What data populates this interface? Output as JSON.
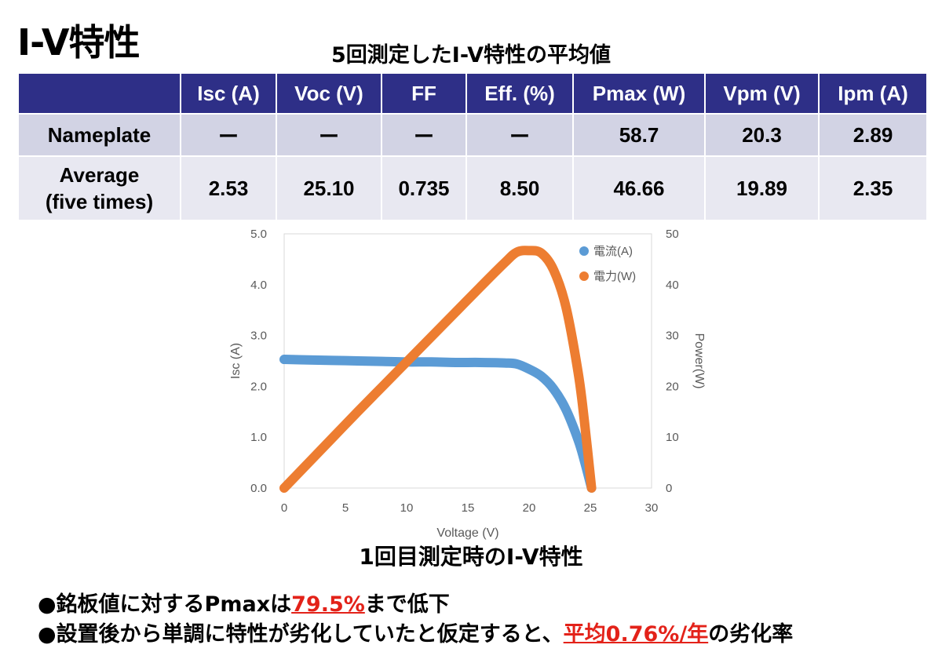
{
  "page": {
    "title": "I-V特性",
    "table_caption": "5回測定したI-V特性の平均値",
    "chart_caption": "1回目測定時のI-V特性"
  },
  "table": {
    "headers": [
      "",
      "Isc (A)",
      "Voc (V)",
      "FF",
      "Eff. (%)",
      "Pmax (W)",
      "Vpm (V)",
      "Ipm (A)"
    ],
    "rows": [
      {
        "label": "Nameplate",
        "cells": [
          "ー",
          "ー",
          "ー",
          "ー",
          "58.7",
          "20.3",
          "2.89"
        ]
      },
      {
        "label_line1": "Average",
        "label_line2": "(five times)",
        "cells": [
          "2.53",
          "25.10",
          "0.735",
          "8.50",
          "46.66",
          "19.89",
          "2.35"
        ]
      }
    ]
  },
  "chart_data": {
    "type": "scatter",
    "xlabel": "Voltage (V)",
    "ylabel": "Isc (A)",
    "y2label": "Power(W)",
    "xlim": [
      0,
      30
    ],
    "ylim": [
      0,
      5
    ],
    "y2lim": [
      0,
      50
    ],
    "x_ticks": [
      "0",
      "5",
      "10",
      "15",
      "20",
      "25",
      "30"
    ],
    "y_ticks": [
      "0.0",
      "1.0",
      "2.0",
      "3.0",
      "4.0",
      "5.0"
    ],
    "y2_ticks": [
      "0",
      "10",
      "20",
      "30",
      "40",
      "50"
    ],
    "legend_position": "top-right",
    "grid": false,
    "series": [
      {
        "name": "電流(A)",
        "axis": "left",
        "color": "#5b9bd5",
        "x": [
          0,
          2,
          4,
          6,
          8,
          10,
          12,
          14,
          16,
          18,
          19,
          20,
          21,
          22,
          23,
          24,
          24.5,
          25.1
        ],
        "y": [
          2.53,
          2.52,
          2.51,
          2.5,
          2.49,
          2.48,
          2.48,
          2.47,
          2.47,
          2.46,
          2.44,
          2.34,
          2.2,
          1.95,
          1.55,
          0.95,
          0.55,
          0.0
        ]
      },
      {
        "name": "電力(W)",
        "axis": "right",
        "color": "#ed7d31",
        "x": [
          0,
          2,
          4,
          6,
          8,
          10,
          12,
          14,
          16,
          18,
          19,
          20,
          21,
          22,
          23,
          24,
          24.5,
          25.1
        ],
        "y": [
          0,
          5.0,
          10.0,
          15.0,
          19.9,
          24.8,
          29.7,
          34.6,
          39.5,
          44.3,
          46.4,
          46.7,
          46.2,
          42.9,
          35.7,
          22.8,
          13.5,
          0
        ]
      }
    ]
  },
  "bullets": [
    {
      "marker": "●",
      "pre": "銘板値に対するPmaxは",
      "highlight": "79.5%",
      "post": "まで低下"
    },
    {
      "marker": "●",
      "pre": "設置後から単調に特性が劣化していたと仮定すると、",
      "highlight": "平均0.76%/年",
      "post": "の劣化率"
    }
  ],
  "colors": {
    "header_bg": "#2e2f87",
    "row1_bg": "#d2d3e4",
    "row2_bg": "#e8e8f1",
    "highlight": "#e32219"
  }
}
